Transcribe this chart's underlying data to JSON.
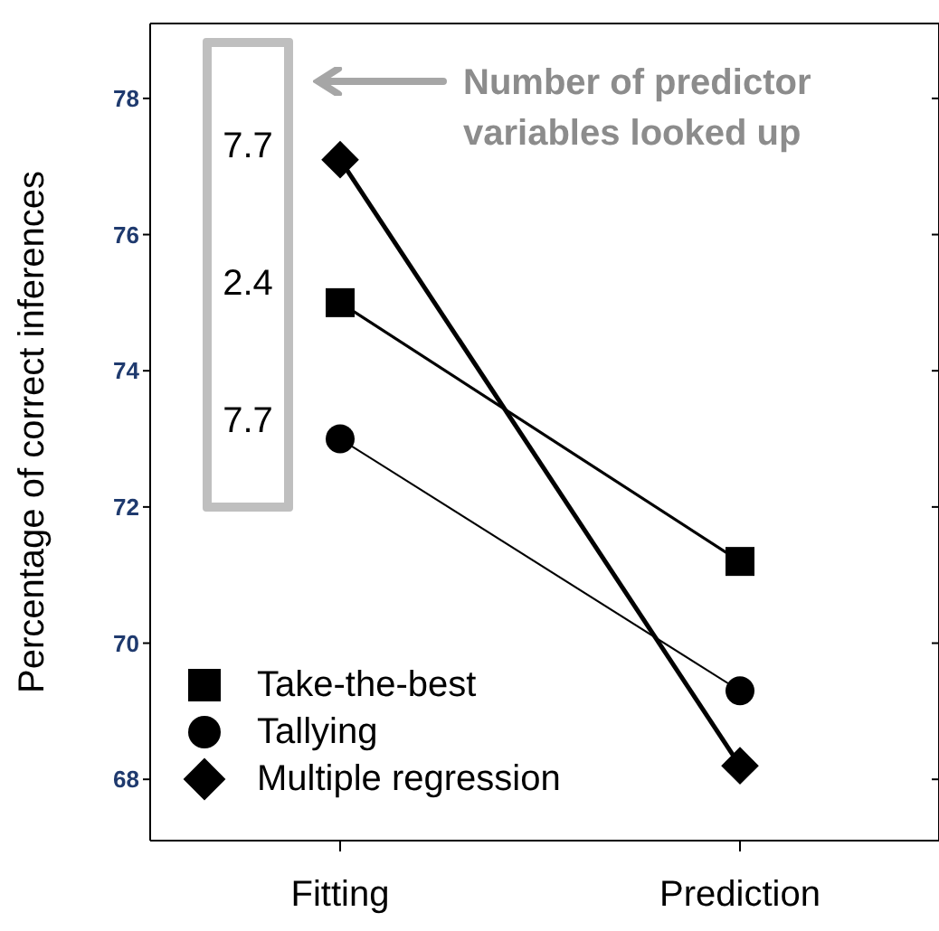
{
  "chart_data": {
    "type": "line",
    "ylabel": "Percentage of correct inferences",
    "categories": [
      "Fitting",
      "Prediction"
    ],
    "series": [
      {
        "name": "Take-the-best",
        "color": "#000000",
        "marker": "square",
        "values": [
          75.0,
          71.2
        ]
      },
      {
        "name": "Tallying",
        "color": "#000000",
        "marker": "circle",
        "values": [
          73.0,
          69.3
        ]
      },
      {
        "name": "Multiple regression",
        "color": "#000000",
        "marker": "diamond",
        "values": [
          77.1,
          68.2
        ]
      }
    ],
    "ylim": [
      67.1,
      79.1
    ],
    "yticks": [
      68,
      70,
      72,
      74,
      76,
      78
    ],
    "legend": "bottom left",
    "annotations": [
      "7.7",
      "2.4",
      "7.7",
      "Number of predictor variables looked up"
    ]
  }
}
